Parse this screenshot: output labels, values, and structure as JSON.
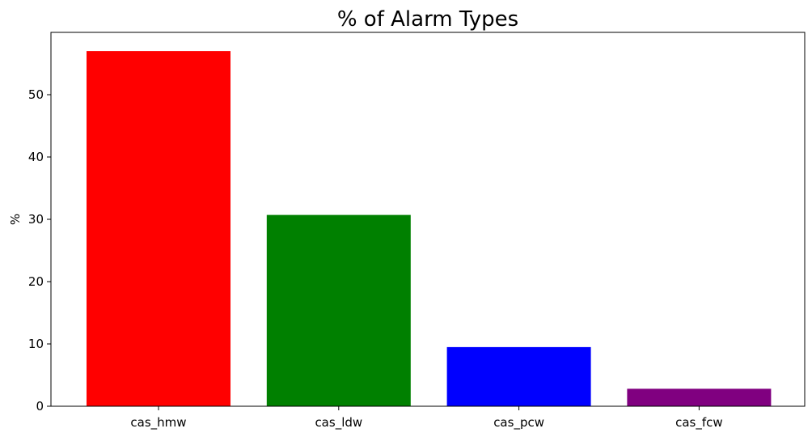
{
  "chart_data": {
    "type": "bar",
    "title": "% of Alarm Types",
    "xlabel": "",
    "ylabel": "%",
    "categories": [
      "cas_hmw",
      "cas_ldw",
      "cas_pcw",
      "cas_fcw"
    ],
    "values": [
      57.0,
      30.7,
      9.5,
      2.8
    ],
    "colors": [
      "#ff0000",
      "#008000",
      "#0000ff",
      "#800080"
    ],
    "ylim": [
      0,
      60
    ],
    "yticks": [
      0,
      10,
      20,
      30,
      40,
      50
    ],
    "grid": false,
    "legend": "none"
  }
}
